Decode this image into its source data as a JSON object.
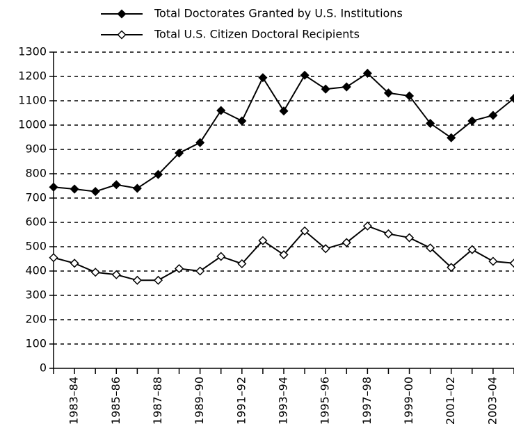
{
  "chart_data": {
    "type": "line",
    "categories": [
      null,
      "1983–84",
      null,
      "1985–86",
      null,
      "1987–88",
      null,
      "1989–90",
      null,
      "1991–92",
      null,
      "1993–94",
      null,
      "1995–96",
      null,
      "1997–98",
      null,
      "1999–00",
      null,
      "2001–02",
      null,
      "2003–04",
      null
    ],
    "series": [
      {
        "name": "Total Doctorates Granted by U.S. Institutions",
        "color": "#000000",
        "marker": "filled-diamond",
        "values": [
          745,
          737,
          727,
          755,
          740,
          797,
          885,
          928,
          1060,
          1017,
          1195,
          1058,
          1205,
          1148,
          1157,
          1213,
          1132,
          1120,
          1007,
          948,
          1017,
          1040,
          1110
        ]
      },
      {
        "name": "Total U.S. Citizen Doctoral Recipients",
        "color": "#000000",
        "marker": "open-diamond",
        "values": [
          455,
          432,
          395,
          385,
          362,
          362,
          410,
          400,
          460,
          430,
          525,
          467,
          565,
          492,
          517,
          585,
          553,
          537,
          495,
          415,
          488,
          440,
          432
        ]
      }
    ],
    "ylim": [
      0,
      1300
    ],
    "yticks": [
      0,
      100,
      200,
      300,
      400,
      500,
      600,
      700,
      800,
      900,
      1000,
      1100,
      1200,
      1300
    ],
    "grid": true,
    "legend": "top"
  }
}
